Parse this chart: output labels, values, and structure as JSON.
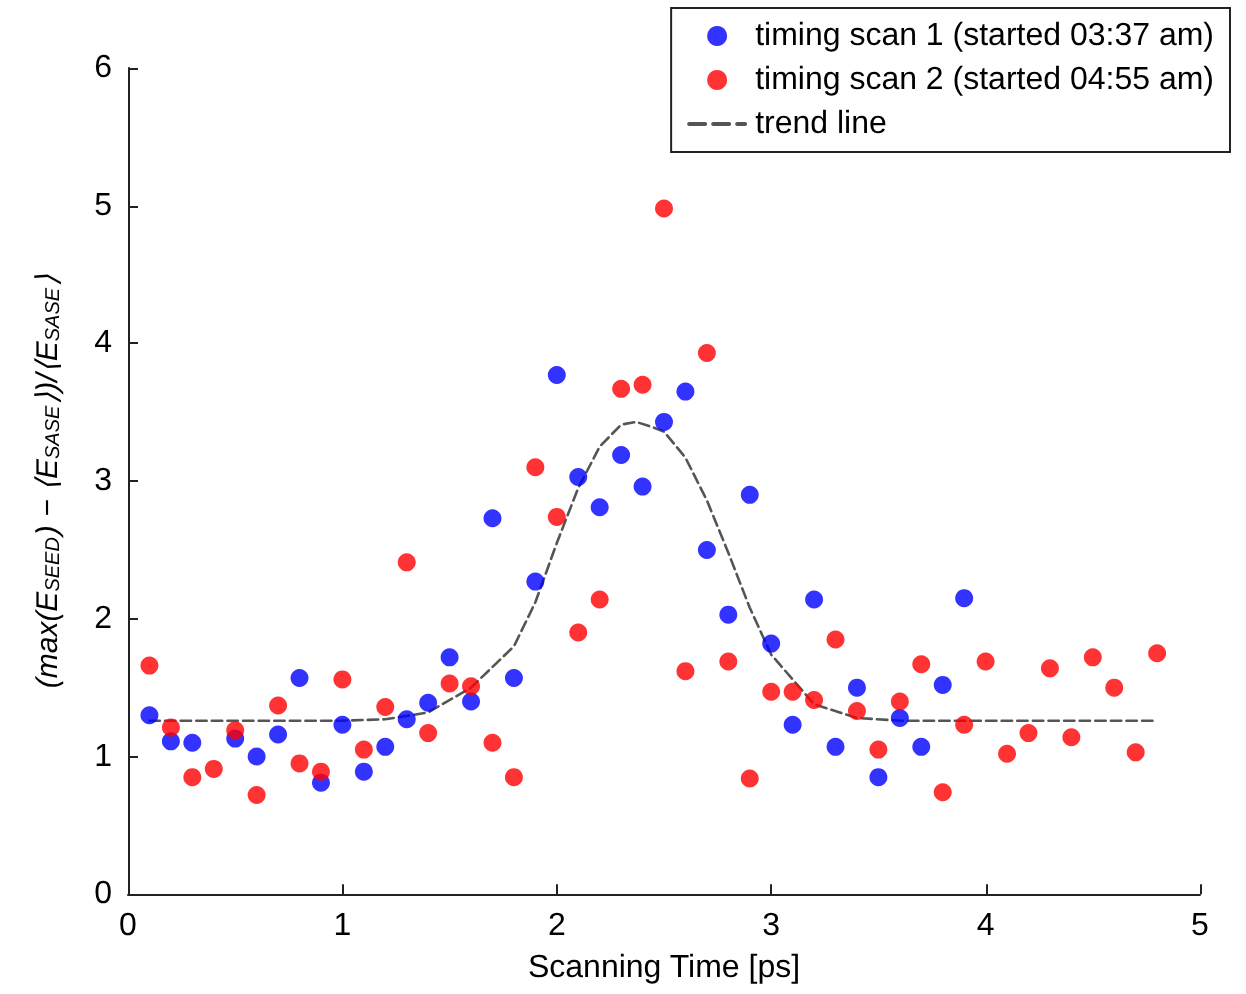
{
  "chart_data": {
    "type": "scatter",
    "xlabel": "Scanning Time [ps]",
    "ylabel": "(max(E$_{SEED}$) − ⟨E$_{SASE}$⟩)/⟨E$_{SASE}$⟩",
    "xlim": [
      0,
      5
    ],
    "xticks": [
      0,
      1,
      2,
      3,
      4,
      5
    ],
    "ylim": [
      0,
      6
    ],
    "yticks": [
      0,
      1,
      2,
      3,
      4,
      5,
      6
    ],
    "grid": false,
    "legend": "top right",
    "marker": "circle",
    "series": [
      {
        "name": "timing scan 1 (started 03:37 am)",
        "color": "#0000ff",
        "x": [
          0.1,
          0.2,
          0.3,
          0.5,
          0.6,
          0.7,
          0.8,
          0.9,
          1.0,
          1.1,
          1.2,
          1.3,
          1.4,
          1.5,
          1.6,
          1.7,
          1.8,
          1.9,
          2.0,
          2.1,
          2.2,
          2.3,
          2.4,
          2.5,
          2.6,
          2.7,
          2.8,
          2.9,
          3.0,
          3.1,
          3.2,
          3.3,
          3.4,
          3.5,
          3.6,
          3.7,
          3.8,
          3.9
        ],
        "values": [
          1.3,
          1.11,
          1.1,
          1.13,
          1.0,
          1.16,
          1.57,
          0.81,
          1.23,
          0.89,
          1.07,
          1.27,
          1.39,
          1.72,
          1.4,
          2.73,
          1.57,
          2.27,
          3.77,
          3.03,
          2.81,
          3.19,
          2.96,
          3.43,
          3.65,
          2.5,
          2.03,
          2.9,
          1.82,
          1.23,
          2.14,
          1.07,
          1.5,
          0.85,
          1.28,
          1.07,
          1.52,
          2.15
        ]
      },
      {
        "name": "timing scan 2 (started 04:55 am)",
        "color": "#ff0000",
        "x": [
          0.1,
          0.2,
          0.3,
          0.4,
          0.5,
          0.6,
          0.7,
          0.8,
          0.9,
          1.0,
          1.1,
          1.2,
          1.3,
          1.4,
          1.5,
          1.6,
          1.7,
          1.8,
          1.9,
          2.0,
          2.1,
          2.2,
          2.3,
          2.4,
          2.5,
          2.6,
          2.7,
          2.8,
          2.9,
          3.0,
          3.1,
          3.2,
          3.3,
          3.4,
          3.5,
          3.6,
          3.7,
          3.8,
          3.9,
          4.0,
          4.1,
          4.2,
          4.3,
          4.4,
          4.5,
          4.6,
          4.7,
          4.8
        ],
        "values": [
          1.66,
          1.21,
          0.85,
          0.91,
          1.19,
          0.72,
          1.37,
          0.95,
          0.89,
          1.56,
          1.05,
          1.36,
          2.41,
          1.17,
          1.53,
          1.51,
          1.1,
          0.85,
          3.1,
          2.74,
          1.9,
          2.14,
          3.67,
          3.7,
          4.98,
          1.62,
          3.93,
          1.69,
          0.84,
          1.47,
          1.47,
          1.41,
          1.85,
          1.33,
          1.05,
          1.4,
          1.67,
          0.74,
          1.23,
          1.69,
          1.02,
          1.17,
          1.64,
          1.14,
          1.72,
          1.5,
          1.03,
          1.75
        ]
      },
      {
        "name": "trend line",
        "type": "line",
        "color": "#555555",
        "marker": "none",
        "line_style": "dashed",
        "x": [
          0.1,
          0.5,
          1.0,
          1.2,
          1.4,
          1.6,
          1.8,
          1.9,
          2.0,
          2.1,
          2.2,
          2.3,
          2.37,
          2.45,
          2.5,
          2.6,
          2.7,
          2.8,
          2.9,
          3.0,
          3.2,
          3.4,
          3.6,
          4.0,
          4.5,
          4.8
        ],
        "values": [
          1.26,
          1.26,
          1.26,
          1.27,
          1.32,
          1.5,
          1.8,
          2.12,
          2.55,
          2.95,
          3.25,
          3.41,
          3.43,
          3.39,
          3.36,
          3.17,
          2.86,
          2.48,
          2.08,
          1.74,
          1.38,
          1.28,
          1.26,
          1.26,
          1.26,
          1.26
        ]
      }
    ]
  }
}
